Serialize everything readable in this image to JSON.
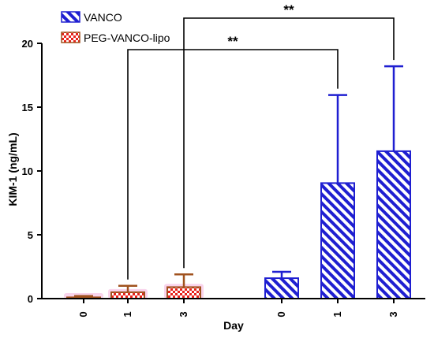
{
  "chart_data": {
    "type": "bar",
    "ylabel": "KIM-1 (ng/mL)",
    "xlabel": "Day",
    "ylim": [
      0,
      20
    ],
    "yticks": [
      0,
      5,
      10,
      15,
      20
    ],
    "legend_position": "top-left",
    "series": [
      {
        "name": "PEG-VANCO-lipo",
        "pattern": "checker",
        "color": "#e8231c",
        "edge_color": "#a0521e",
        "error_color": "#a0521e",
        "glow_color": "#f7c6e6",
        "categories": [
          "0",
          "1",
          "3"
        ],
        "values": [
          0.1,
          0.5,
          0.9
        ],
        "errors": [
          0.1,
          0.5,
          1.0
        ]
      },
      {
        "name": "VANCO",
        "pattern": "diagonal",
        "color": "#1f1fd1",
        "edge_color": "#1f1fd1",
        "error_color": "#1f1fd1",
        "categories": [
          "0",
          "1",
          "3"
        ],
        "values": [
          1.6,
          9.05,
          11.55
        ],
        "errors": [
          0.5,
          6.9,
          6.65
        ]
      }
    ],
    "annotations": [
      {
        "label": "**",
        "from_bar": "PEG-VANCO-lipo 1",
        "to_bar": "VANCO 1"
      },
      {
        "label": "**",
        "from_bar": "PEG-VANCO-lipo 3",
        "to_bar": "VANCO 3"
      }
    ]
  }
}
